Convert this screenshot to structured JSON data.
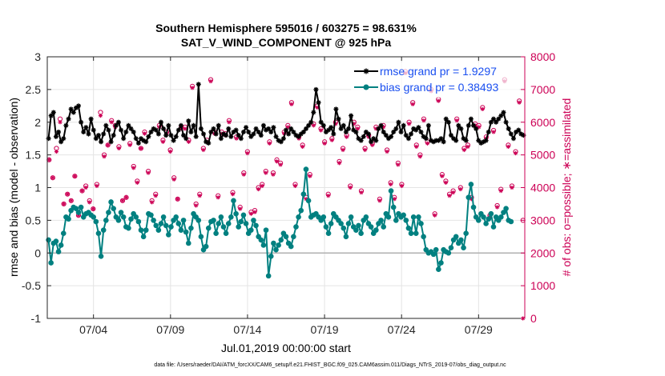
{
  "chart_data": {
    "type": "line",
    "title": "Southern Hemisphere 595016 / 603275 = 98.631%",
    "subtitle": "SAT_V_WIND_COMPONENT @ 925 hPa",
    "xlabel": "Jul.01,2019 00:00:00 start",
    "ylabel_left": "rmse and bias (model - observation)",
    "ylabel_right": "# of obs: o=possible; ∗=assimilated",
    "footnote": "data file: /Users/raeder/DAI/ATM_forcXX/CAM6_setup/f.e21.FHIST_BGC.f09_025.CAM6assim.011/Diags_NTrS_2019-07/obs_diag_output.nc",
    "xlim": [
      1,
      32
    ],
    "ylim_left": [
      -1,
      3
    ],
    "ylim_right": [
      0,
      8000
    ],
    "x_ticks": [
      4,
      9,
      14,
      19,
      24,
      29
    ],
    "x_tick_labels": [
      "07/04",
      "07/09",
      "07/14",
      "07/19",
      "07/24",
      "07/29"
    ],
    "y_ticks_left": [
      -1,
      -0.5,
      0,
      0.5,
      1,
      1.5,
      2,
      2.5,
      3
    ],
    "y_tick_labels_left": [
      "-1",
      "-0.5",
      "0",
      "0.5",
      "1",
      "1.5",
      "2",
      "2.5",
      "3"
    ],
    "y_ticks_right": [
      0,
      1000,
      2000,
      3000,
      4000,
      5000,
      6000,
      7000,
      8000
    ],
    "y_tick_labels_right": [
      "0",
      "1000",
      "2000",
      "3000",
      "4000",
      "5000",
      "6000",
      "7000",
      "8000"
    ],
    "grid": true,
    "legend_position": "top-right",
    "series": [
      {
        "name": "rmse grand pr = 1.9297",
        "color": "#000000",
        "marker": "asterisk",
        "values": [
          1.75,
          2.1,
          2.15,
          1.78,
          1.85,
          1.7,
          1.75,
          1.95,
          2.05,
          2.2,
          2.15,
          2.22,
          2.25,
          2.0,
          1.85,
          1.92,
          1.82,
          2.05,
          1.88,
          1.75,
          1.8,
          1.7,
          1.82,
          1.95,
          1.88,
          1.7,
          1.8,
          1.95,
          2.0,
          1.88,
          1.75,
          1.85,
          1.95,
          1.9,
          1.85,
          1.75,
          1.68,
          1.75,
          1.72,
          1.7,
          1.78,
          1.85,
          1.9,
          1.88,
          1.82,
          2.0,
          1.9,
          1.8,
          1.95,
          1.8,
          1.72,
          1.78,
          1.88,
          1.95,
          1.8,
          1.75,
          2.02,
          1.85,
          1.95,
          1.78,
          2.58,
          1.9,
          1.82,
          1.7,
          1.68,
          1.85,
          1.9,
          1.82,
          1.95,
          1.75,
          1.82,
          1.8,
          1.9,
          1.78,
          1.85,
          1.88,
          1.8,
          1.75,
          1.85,
          1.92,
          1.85,
          1.78,
          1.82,
          1.9,
          1.85,
          1.8,
          1.95,
          1.88,
          1.9,
          1.85,
          1.92,
          1.78,
          1.72,
          1.7,
          1.75,
          1.88,
          1.82,
          1.9,
          1.85,
          1.8,
          1.78,
          1.82,
          1.85,
          1.9,
          1.95,
          2.0,
          2.15,
          2.5,
          2.3,
          2.0,
          1.95,
          1.85,
          1.88,
          1.92,
          1.82,
          2.2,
          2.05,
          1.9,
          1.95,
          1.85,
          1.9,
          2.1,
          1.88,
          1.85,
          1.75,
          1.72,
          1.78,
          1.85,
          1.82,
          1.7,
          1.75,
          1.72,
          1.9,
          1.95,
          1.85,
          1.8,
          1.75,
          1.78,
          1.85,
          1.9,
          2.0,
          1.85,
          1.95,
          1.8,
          1.75,
          1.82,
          1.9,
          1.88,
          1.92,
          1.85,
          1.78,
          1.75,
          1.95,
          1.72,
          1.7,
          1.72,
          1.72,
          1.75,
          1.7,
          2.05,
          2.0,
          1.8,
          1.75,
          1.72,
          1.95,
          1.9,
          1.75,
          1.72,
          1.95,
          2.05,
          1.95,
          1.9,
          1.72,
          1.68,
          1.7,
          1.72,
          1.85,
          2.0,
          2.05,
          2.0,
          2.05,
          2.1,
          2.15,
          2.0,
          1.9,
          1.82,
          1.75,
          1.85,
          1.88,
          1.82,
          1.8
        ]
      },
      {
        "name": "bias grand pr = 0.38493",
        "color": "#008080",
        "marker": "dot",
        "values": [
          0.2,
          -0.15,
          0.15,
          0.18,
          0.02,
          0.12,
          0.3,
          0.55,
          0.52,
          0.65,
          0.7,
          0.68,
          0.62,
          0.7,
          0.55,
          0.6,
          0.62,
          0.58,
          0.55,
          0.48,
          0.3,
          -0.05,
          0.35,
          0.5,
          0.62,
          0.78,
          0.68,
          0.55,
          0.5,
          0.62,
          0.55,
          0.4,
          0.38,
          0.52,
          0.6,
          0.55,
          0.48,
          0.35,
          0.25,
          0.35,
          0.6,
          0.58,
          0.5,
          0.42,
          0.35,
          0.45,
          0.55,
          0.42,
          0.28,
          0.4,
          0.5,
          0.55,
          0.45,
          0.35,
          0.5,
          0.32,
          0.15,
          0.38,
          0.6,
          0.55,
          0.5,
          0.25,
          0.05,
          0.1,
          0.38,
          0.48,
          0.5,
          0.3,
          0.45,
          0.55,
          0.4,
          0.3,
          0.45,
          0.55,
          0.8,
          0.6,
          0.4,
          0.48,
          0.58,
          0.45,
          0.3,
          0.35,
          0.5,
          0.42,
          0.25,
          0.2,
          0.12,
          0.35,
          -0.35,
          -0.05,
          0.15,
          0.05,
          0.12,
          0.2,
          0.3,
          0.25,
          0.15,
          0.1,
          0.25,
          0.4,
          0.55,
          0.65,
          0.9,
          1.28,
          0.8,
          0.55,
          0.58,
          0.6,
          0.55,
          0.5,
          0.55,
          0.4,
          0.3,
          0.45,
          0.6,
          0.55,
          0.5,
          0.45,
          0.38,
          0.25,
          0.45,
          0.55,
          0.4,
          0.35,
          0.42,
          0.3,
          0.5,
          0.55,
          0.45,
          0.4,
          0.3,
          0.35,
          0.45,
          0.5,
          0.4,
          0.6,
          0.55,
          0.95,
          0.7,
          0.5,
          0.6,
          0.55,
          0.58,
          0.5,
          0.38,
          0.3,
          0.55,
          0.3,
          0.55,
          0.45,
          0.25,
          0.05,
          0.0,
          0.02,
          -0.02,
          0.05,
          -0.25,
          -0.15,
          0.05,
          0.02,
          0.0,
          0.08,
          0.2,
          0.25,
          0.15,
          0.2,
          0.08,
          0.3,
          0.85,
          1.05,
          0.7,
          0.55,
          0.5,
          0.6,
          0.55,
          0.45,
          0.52,
          0.6,
          0.4,
          0.55,
          0.5,
          0.55,
          0.62,
          0.68,
          0.5,
          0.48
        ]
      },
      {
        "name": "possible obs",
        "color": "#cc0055",
        "marker": "circle",
        "axis": "right",
        "values": [
          4850,
          4300,
          5200,
          6100,
          3500,
          3800,
          3600,
          4350,
          3150,
          3900,
          4050,
          3600,
          3350,
          4100,
          6300,
          5000,
          5300,
          6050,
          5900,
          5250,
          3600,
          3700,
          5350,
          4650,
          4200,
          5200,
          5700,
          4500,
          3600,
          3800,
          5900,
          5450,
          5700,
          5150,
          4300,
          3650,
          5850,
          5850,
          5450,
          7100,
          3500,
          3800,
          5200,
          5450,
          7300,
          5700,
          3750,
          5700,
          5650,
          6050,
          3850,
          5550,
          3400,
          4450,
          5100,
          3250,
          3300,
          4000,
          4100,
          4500,
          5400,
          4450,
          4850,
          4750,
          5700,
          5900,
          6600,
          4100,
          5550,
          5300,
          3700,
          4400,
          5950,
          6500,
          5800,
          5400,
          3800,
          5500,
          6000,
          4800,
          5200,
          5600,
          4050,
          6000,
          5850,
          3900,
          5200,
          5600,
          5350,
          5850,
          3650,
          5900,
          5150,
          4150,
          3700,
          4750,
          4100,
          7550,
          6000,
          6600,
          5300,
          5000,
          6100,
          5400,
          7000,
          3200,
          6700,
          4400,
          4200,
          3800,
          3900,
          6100,
          4000,
          5200,
          5300,
          3700,
          5950,
          5900,
          6450,
          5550,
          3150,
          5750,
          3450,
          3950,
          7300,
          5300,
          4050,
          5100,
          6650,
          3000
        ]
      },
      {
        "name": "assimilated obs",
        "color": "#cc0055",
        "marker": "asterisk",
        "axis": "right",
        "values": [
          4850,
          4300,
          5100,
          6000,
          3500,
          3800,
          3600,
          4350,
          3150,
          3900,
          4000,
          3550,
          3350,
          4050,
          6200,
          4950,
          5300,
          6000,
          5850,
          5200,
          3600,
          3700,
          5300,
          4600,
          4150,
          5200,
          5650,
          4450,
          3550,
          3750,
          5850,
          5400,
          5650,
          5100,
          4250,
          3650,
          5800,
          5800,
          5400,
          7050,
          3450,
          3750,
          5150,
          5400,
          7250,
          5650,
          3700,
          5650,
          5600,
          6000,
          3800,
          5500,
          3350,
          4400,
          5050,
          3200,
          3250,
          3950,
          4050,
          4450,
          5350,
          4400,
          4800,
          4700,
          5650,
          5850,
          6550,
          4050,
          5500,
          5250,
          3650,
          4350,
          5900,
          6450,
          5750,
          5350,
          3750,
          5450,
          5950,
          4750,
          5150,
          5550,
          4000,
          5950,
          5800,
          3850,
          5150,
          5550,
          5300,
          5800,
          3600,
          5850,
          5100,
          4100,
          3650,
          4700,
          4050,
          7500,
          5950,
          6550,
          5250,
          4950,
          6050,
          5350,
          6950,
          3150,
          6650,
          4350,
          4150,
          3750,
          3850,
          6050,
          3950,
          5150,
          5250,
          3650,
          5900,
          5850,
          6400,
          5500,
          3100,
          5700,
          3400,
          3900,
          7250,
          5250,
          4000,
          5050,
          6600,
          0
        ]
      }
    ]
  }
}
